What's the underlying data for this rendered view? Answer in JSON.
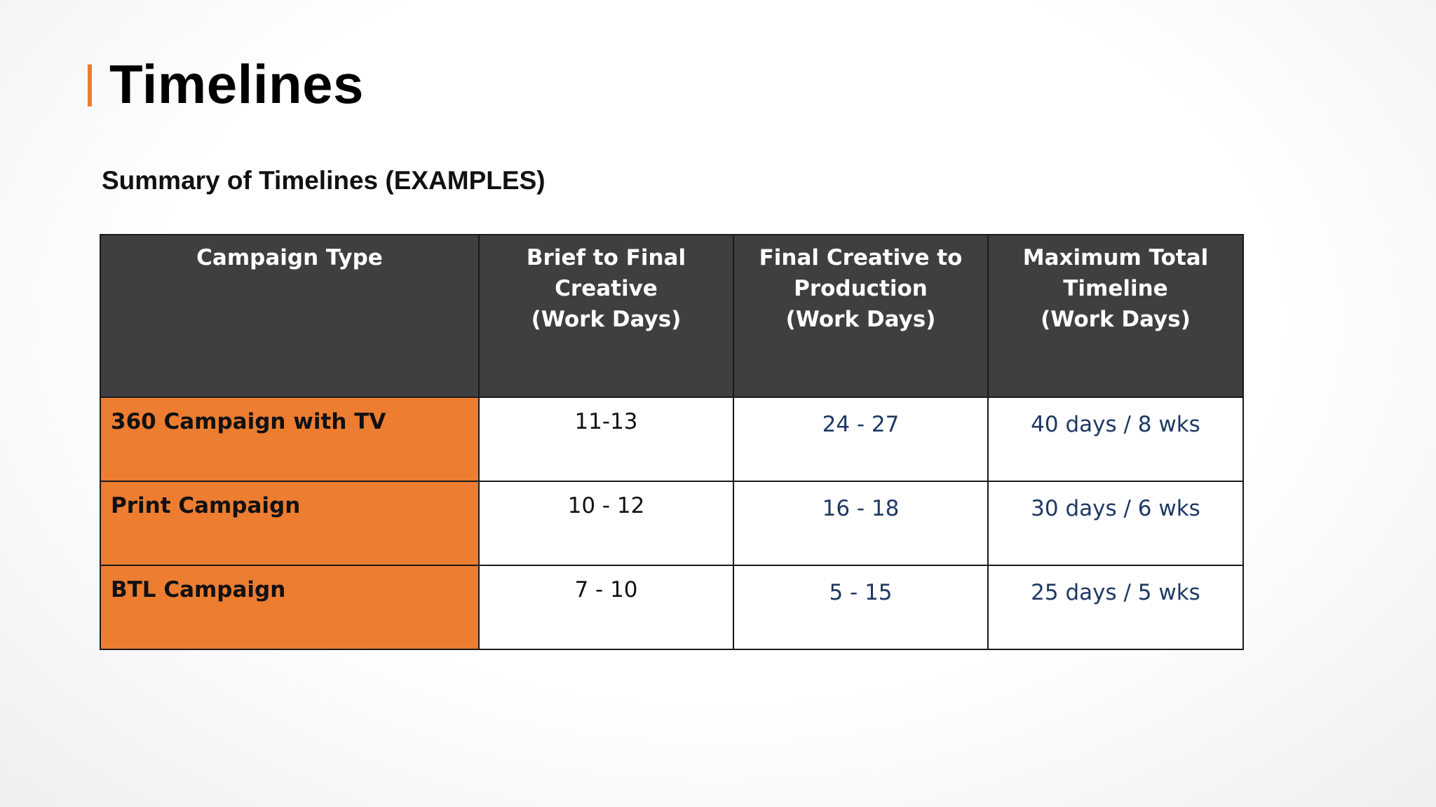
{
  "slide": {
    "title": "Timelines",
    "subtitle": "Summary of Timelines (EXAMPLES)",
    "accent_color": "#ed7d31"
  },
  "table": {
    "headers": [
      {
        "lines": [
          "Campaign Type"
        ]
      },
      {
        "lines": [
          "Brief to Final Creative",
          "(Work Days)"
        ]
      },
      {
        "lines": [
          "Final Creative to",
          "Production",
          "(Work Days)"
        ]
      },
      {
        "lines": [
          "Maximum Total",
          "Timeline",
          "(Work Days)"
        ]
      }
    ],
    "rows": [
      {
        "type": "360 Campaign with TV",
        "brief": "11-13",
        "production": "24 - 27",
        "total": "40 days / 8 wks"
      },
      {
        "type": "Print Campaign",
        "brief": "10 - 12",
        "production": "16 - 18",
        "total": "30 days / 6 wks"
      },
      {
        "type": "BTL Campaign",
        "brief": "7 - 10",
        "production": "5 - 15",
        "total": "25 days / 5 wks"
      }
    ],
    "colors": {
      "header_bg": "#3f3f41",
      "type_cell_bg": "#ed7d31",
      "value_text": "#1f3864"
    }
  }
}
